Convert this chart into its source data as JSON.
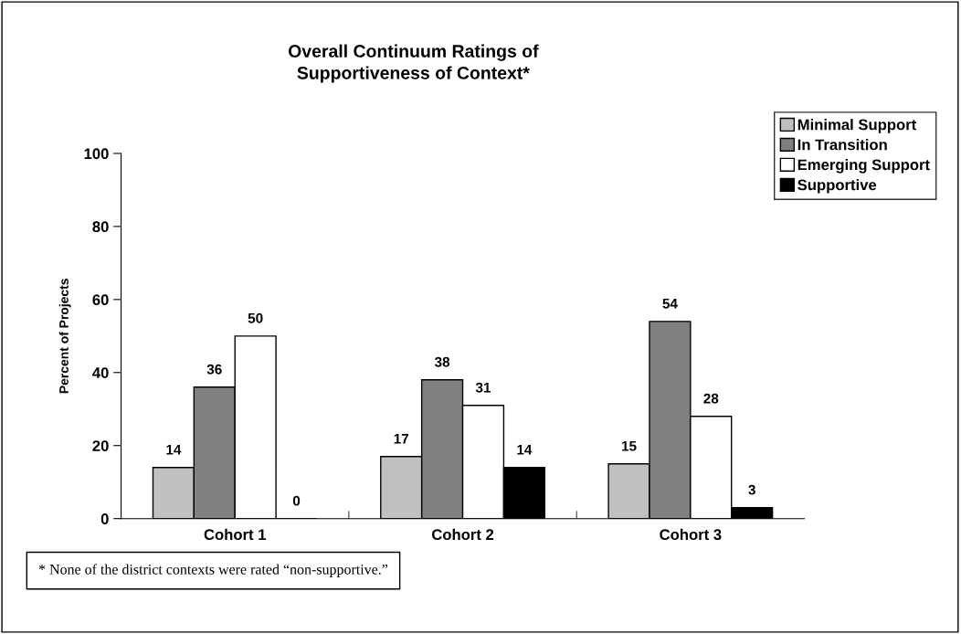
{
  "chart_data": {
    "type": "bar",
    "title": "Overall Continuum Ratings of\nSupportiveness of Context*",
    "ylabel": "Percent of Projects",
    "categories": [
      "Cohort 1",
      "Cohort 2",
      "Cohort 3"
    ],
    "series": [
      {
        "name": "Minimal Support",
        "color": "#c0c0c0",
        "values": [
          14,
          17,
          15
        ]
      },
      {
        "name": "In Transition",
        "color": "#808080",
        "values": [
          36,
          38,
          54
        ]
      },
      {
        "name": "Emerging Support",
        "color": "#ffffff",
        "values": [
          50,
          31,
          28
        ]
      },
      {
        "name": "Supportive",
        "color": "#000000",
        "values": [
          0,
          14,
          3
        ]
      }
    ],
    "ylim": [
      0,
      100
    ],
    "yticks": [
      0,
      20,
      40,
      60,
      80,
      100
    ],
    "grid": false,
    "legend": "top right",
    "data_labels": true,
    "annotations": [
      "* None of the district contexts were rated “non-supportive.”"
    ]
  }
}
